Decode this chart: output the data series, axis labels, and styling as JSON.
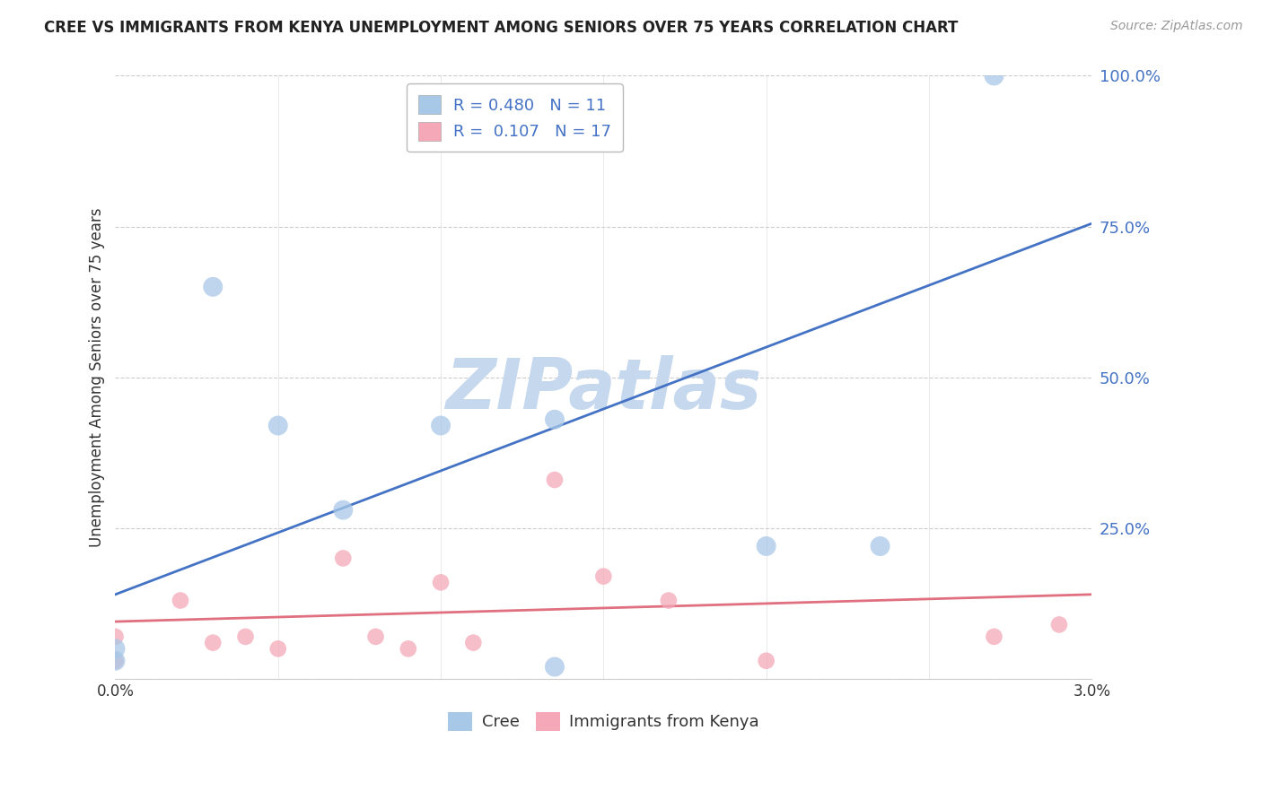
{
  "title": "CREE VS IMMIGRANTS FROM KENYA UNEMPLOYMENT AMONG SENIORS OVER 75 YEARS CORRELATION CHART",
  "source": "Source: ZipAtlas.com",
  "ylabel": "Unemployment Among Seniors over 75 years",
  "xlim": [
    0.0,
    3.0
  ],
  "ylim": [
    0.0,
    100.0
  ],
  "yticks": [
    0.0,
    25.0,
    50.0,
    75.0,
    100.0
  ],
  "ytick_labels": [
    "",
    "25.0%",
    "50.0%",
    "75.0%",
    "100.0%"
  ],
  "grid_color": "#cccccc",
  "background_color": "#ffffff",
  "cree_color": "#a8c8e8",
  "kenya_color": "#f4a8b8",
  "cree_line_color": "#4472c4",
  "kenya_line_color": "#e07080",
  "cree_R": 0.48,
  "cree_N": 11,
  "kenya_R": 0.107,
  "kenya_N": 17,
  "cree_x": [
    0.0,
    0.0,
    0.5,
    1.0,
    1.35,
    1.35,
    2.0,
    2.35,
    2.7,
    0.3,
    0.7
  ],
  "cree_y": [
    3.0,
    5.0,
    42.0,
    42.0,
    2.0,
    43.0,
    22.0,
    22.0,
    100.0,
    65.0,
    28.0
  ],
  "kenya_x": [
    0.0,
    0.0,
    0.2,
    0.3,
    0.4,
    0.5,
    0.7,
    0.8,
    0.9,
    1.0,
    1.1,
    1.35,
    1.5,
    1.7,
    2.0,
    2.7,
    2.9
  ],
  "kenya_y": [
    3.0,
    7.0,
    13.0,
    6.0,
    7.0,
    5.0,
    20.0,
    7.0,
    5.0,
    16.0,
    6.0,
    33.0,
    17.0,
    13.0,
    3.0,
    7.0,
    9.0
  ],
  "cree_line_intercept": 14.0,
  "cree_line_slope": 20.5,
  "kenya_line_intercept": 9.5,
  "kenya_line_slope": 1.5,
  "watermark_text": "ZIPatlas",
  "watermark_color": "#c5d8ee",
  "bubble_size_cree": 250,
  "bubble_size_kenya": 180
}
